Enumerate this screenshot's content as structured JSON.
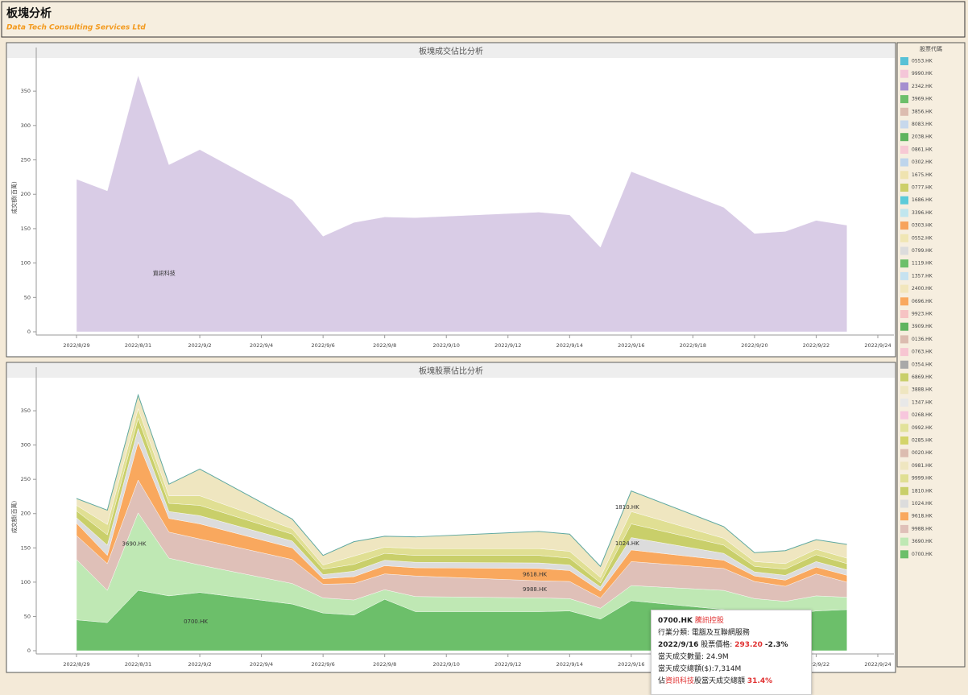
{
  "header": {
    "title": "板塊分析",
    "subtitle": "Data Tech Consulting Services Ltd"
  },
  "chart_data": [
    {
      "type": "area",
      "title": "板塊成交佔比分析",
      "y_label": "成交額(百萬)",
      "x": [
        "2022/8/29",
        "2022/8/30",
        "2022/8/31",
        "2022/9/1",
        "2022/9/2",
        "2022/9/5",
        "2022/9/6",
        "2022/9/7",
        "2022/9/8",
        "2022/9/9",
        "2022/9/13",
        "2022/9/14",
        "2022/9/15",
        "2022/9/16",
        "2022/9/19",
        "2022/9/20",
        "2022/9/21",
        "2022/9/22",
        "2022/9/23"
      ],
      "xlim": [
        "2022/8/29",
        "2022/9/24"
      ],
      "xticks": [
        "2022/8/29",
        "2022/8/31",
        "2022/9/2",
        "2022/9/4",
        "2022/9/6",
        "2022/9/8",
        "2022/9/10",
        "2022/9/12",
        "2022/9/14",
        "2022/9/16",
        "2022/9/18",
        "2022/9/20",
        "2022/9/22",
        "2022/9/24"
      ],
      "ylim": [
        0,
        390
      ],
      "yticks": [
        0,
        50,
        100,
        150,
        200,
        250,
        300,
        350
      ],
      "series": [
        {
          "name": "資訊科技",
          "color": "#d9cce6",
          "values": [
            222,
            205,
            373,
            243,
            265,
            192,
            139,
            159,
            167,
            166,
            174,
            170,
            123,
            233,
            181,
            143,
            146,
            162,
            155
          ]
        }
      ]
    },
    {
      "type": "stacked_area",
      "title": "板塊股票佔比分析",
      "y_label": "成交額(百萬)",
      "x": [
        "2022/8/29",
        "2022/8/30",
        "2022/8/31",
        "2022/9/1",
        "2022/9/2",
        "2022/9/5",
        "2022/9/6",
        "2022/9/7",
        "2022/9/8",
        "2022/9/9",
        "2022/9/13",
        "2022/9/14",
        "2022/9/15",
        "2022/9/16",
        "2022/9/19",
        "2022/9/20",
        "2022/9/21",
        "2022/9/22",
        "2022/9/23"
      ],
      "xlim": [
        "2022/8/29",
        "2022/9/24"
      ],
      "xticks": [
        "2022/8/29",
        "2022/8/31",
        "2022/9/2",
        "2022/9/4",
        "2022/9/6",
        "2022/9/8",
        "2022/9/10",
        "2022/9/12",
        "2022/9/14",
        "2022/9/16",
        "2022/9/18",
        "2022/9/20",
        "2022/9/22",
        "2022/9/24"
      ],
      "ylim": [
        0,
        390
      ],
      "yticks": [
        0,
        50,
        100,
        150,
        200,
        250,
        300,
        350
      ],
      "series": [
        {
          "name": "0700.HK",
          "color": "#6cbf6a",
          "values": [
            45,
            41,
            88,
            80,
            85,
            68,
            55,
            52,
            75,
            57,
            57,
            58,
            46,
            73,
            60,
            50,
            52,
            58,
            60
          ]
        },
        {
          "name": "3690.HK",
          "color": "#bfe8b4",
          "values": [
            88,
            47,
            113,
            55,
            40,
            30,
            22,
            22,
            14,
            22,
            20,
            18,
            16,
            22,
            28,
            26,
            20,
            22,
            18
          ]
        },
        {
          "name": "9988.HK",
          "color": "#dfc0b8",
          "values": [
            35,
            39,
            48,
            38,
            38,
            35,
            20,
            24,
            23,
            30,
            25,
            25,
            15,
            35,
            32,
            25,
            22,
            32,
            22
          ]
        },
        {
          "name": "9618.HK",
          "color": "#f9a85e",
          "values": [
            18,
            12,
            55,
            20,
            22,
            17,
            8,
            10,
            12,
            12,
            18,
            16,
            10,
            17,
            12,
            8,
            9,
            10,
            10
          ]
        },
        {
          "name": "1024.HK",
          "color": "#dcdcdc",
          "values": [
            8,
            15,
            20,
            10,
            12,
            10,
            6,
            8,
            8,
            8,
            8,
            8,
            6,
            18,
            10,
            6,
            7,
            8,
            8
          ]
        },
        {
          "name": "1810.HK",
          "color": "#c9cf6a",
          "values": [
            10,
            15,
            15,
            12,
            15,
            10,
            8,
            10,
            10,
            10,
            11,
            10,
            6,
            20,
            12,
            8,
            9,
            10,
            9
          ]
        },
        {
          "name": "9999.HK",
          "color": "#e0df93",
          "values": [
            8,
            15,
            14,
            11,
            14,
            8,
            6,
            12,
            9,
            10,
            10,
            10,
            8,
            18,
            10,
            7,
            8,
            8,
            8
          ]
        },
        {
          "name": "0981.HK",
          "color": "#efe6c0",
          "values": [
            10,
            21,
            20,
            17,
            39,
            14,
            14,
            21,
            16,
            17,
            25,
            25,
            16,
            30,
            17,
            13,
            19,
            14,
            20
          ]
        }
      ]
    }
  ],
  "legend": {
    "title": "股票代碼",
    "items": [
      {
        "name": "0553.HK",
        "color": "#57c1d6"
      },
      {
        "name": "9990.HK",
        "color": "#f4c6d8"
      },
      {
        "name": "2342.HK",
        "color": "#a58fcf"
      },
      {
        "name": "3969.HK",
        "color": "#6cbf6a"
      },
      {
        "name": "3856.HK",
        "color": "#dcbcb0"
      },
      {
        "name": "8083.HK",
        "color": "#c7d8ec"
      },
      {
        "name": "2038.HK",
        "color": "#5fb45f"
      },
      {
        "name": "0861.HK",
        "color": "#f7c9d4"
      },
      {
        "name": "0302.HK",
        "color": "#bed5ec"
      },
      {
        "name": "1675.HK",
        "color": "#efe3b0"
      },
      {
        "name": "0777.HK",
        "color": "#cdcf6a"
      },
      {
        "name": "1686.HK",
        "color": "#5ccbd9"
      },
      {
        "name": "3396.HK",
        "color": "#c0e6ee"
      },
      {
        "name": "0303.HK",
        "color": "#f7a35c"
      },
      {
        "name": "0552.HK",
        "color": "#f0e6b4"
      },
      {
        "name": "0799.HK",
        "color": "#dcdcdc"
      },
      {
        "name": "1119.HK",
        "color": "#6cbf6a"
      },
      {
        "name": "1357.HK",
        "color": "#c6e2f0"
      },
      {
        "name": "2400.HK",
        "color": "#f2e6bc"
      },
      {
        "name": "0696.HK",
        "color": "#f9a85e"
      },
      {
        "name": "9923.HK",
        "color": "#f6c3c3"
      },
      {
        "name": "3909.HK",
        "color": "#5fb45f"
      },
      {
        "name": "0136.HK",
        "color": "#dcbcb0"
      },
      {
        "name": "0763.HK",
        "color": "#f7c6d2"
      },
      {
        "name": "0354.HK",
        "color": "#a9a9a9"
      },
      {
        "name": "6869.HK",
        "color": "#c9cf6a"
      },
      {
        "name": "3888.HK",
        "color": "#efe6c0"
      },
      {
        "name": "1347.HK",
        "color": "#e8e8e8"
      },
      {
        "name": "0268.HK",
        "color": "#f7c6dd"
      },
      {
        "name": "0992.HK",
        "color": "#e2e29a"
      },
      {
        "name": "0285.HK",
        "color": "#d4d46a"
      },
      {
        "name": "0020.HK",
        "color": "#dcbcb0"
      },
      {
        "name": "0981.HK",
        "color": "#efe6c0"
      },
      {
        "name": "9999.HK",
        "color": "#e0df93"
      },
      {
        "name": "1810.HK",
        "color": "#c9cf6a"
      },
      {
        "name": "1024.HK",
        "color": "#dcdcdc"
      },
      {
        "name": "9618.HK",
        "color": "#f9a85e"
      },
      {
        "name": "9988.HK",
        "color": "#dfc0b8"
      },
      {
        "name": "3690.HK",
        "color": "#bfe8b4"
      },
      {
        "name": "0700.HK",
        "color": "#6cbf6a"
      }
    ]
  },
  "tooltip": {
    "code": "0700.HK",
    "name": "騰訊控股",
    "industry": "行業分類: 電腦及互聯網服務",
    "date": "2022/9/16",
    "price_label": "股票價格:",
    "price": "293.20",
    "change": "-2.3%",
    "volume": "當天成交數量: 24.9M",
    "turnover": "當天成交總額($):7,314M",
    "share_prefix": "佔",
    "sector": "資訊科技",
    "share_mid": "股當天成交總額",
    "share": "31.4%"
  }
}
